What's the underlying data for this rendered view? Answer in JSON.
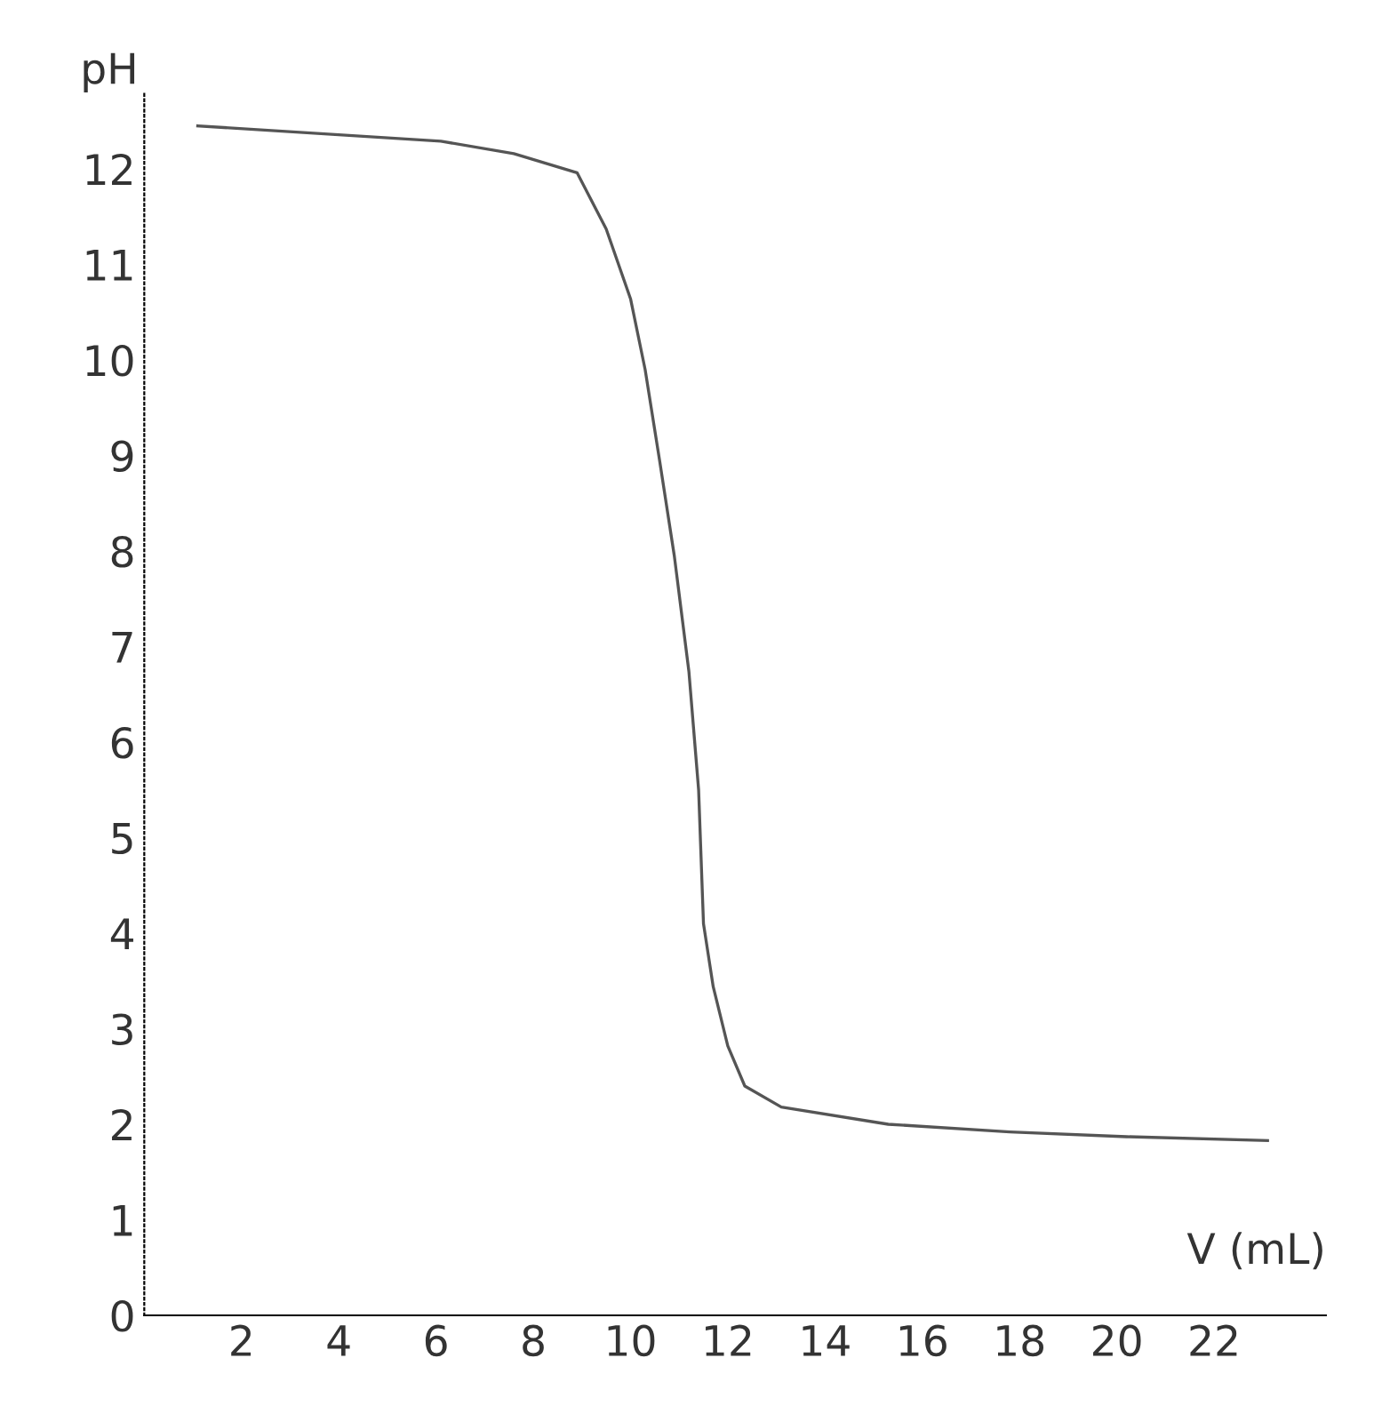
{
  "chart_data": {
    "type": "line",
    "xlabel": "V (mL)",
    "ylabel": "pH",
    "series": [
      {
        "color": "#555555",
        "x": [
          1.1,
          6.1,
          7.6,
          8.9,
          9.5,
          10.0,
          10.3,
          10.6,
          10.9,
          11.2,
          11.4,
          11.5,
          11.7,
          12.0,
          12.35,
          13.1,
          15.3,
          17.8,
          20.2,
          23.1
        ],
        "values": [
          12.45,
          12.29,
          12.16,
          11.96,
          11.37,
          10.64,
          9.9,
          8.94,
          7.95,
          6.74,
          5.5,
          4.1,
          3.44,
          2.82,
          2.4,
          2.18,
          2.0,
          1.92,
          1.87,
          1.83
        ]
      }
    ],
    "xlim": [
      0,
      24.3
    ],
    "ylim": [
      0,
      12.8
    ],
    "xticks": [
      2,
      4,
      6,
      8,
      10,
      12,
      14,
      16,
      18,
      20,
      22
    ],
    "yticks": [
      0,
      1,
      2,
      3,
      4,
      5,
      6,
      7,
      8,
      9,
      10,
      11,
      12
    ],
    "grid": false,
    "marker": "none",
    "line_style": "solid"
  }
}
